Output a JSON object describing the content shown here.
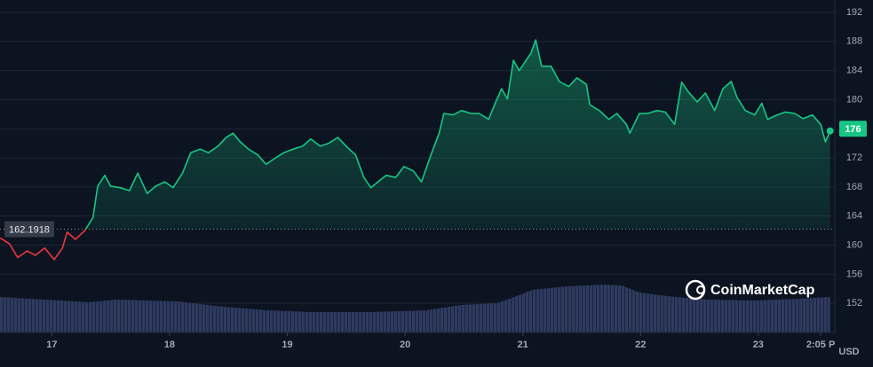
{
  "chart_data": {
    "type": "line",
    "x": [
      16.56,
      16.64,
      16.71,
      16.79,
      16.86,
      16.94,
      17.02,
      17.09,
      17.13,
      17.2,
      17.28,
      17.35,
      17.39,
      17.45,
      17.5,
      17.58,
      17.66,
      17.73,
      17.81,
      17.88,
      17.96,
      18.03,
      18.11,
      18.18,
      18.26,
      18.33,
      18.41,
      18.48,
      18.54,
      18.6,
      18.67,
      18.75,
      18.82,
      18.9,
      18.97,
      19.05,
      19.13,
      19.2,
      19.28,
      19.35,
      19.43,
      19.5,
      19.58,
      19.65,
      19.71,
      19.77,
      19.84,
      19.92,
      19.99,
      20.07,
      20.14,
      20.22,
      20.29,
      20.33,
      20.41,
      20.48,
      20.56,
      20.63,
      20.71,
      20.77,
      20.82,
      20.87,
      20.92,
      20.97,
      21.02,
      21.07,
      21.11,
      21.16,
      21.24,
      21.31,
      21.39,
      21.46,
      21.54,
      21.57,
      21.65,
      21.73,
      21.8,
      21.88,
      21.91,
      21.99,
      22.06,
      22.14,
      22.21,
      22.29,
      22.35,
      22.4,
      22.48,
      22.55,
      22.63,
      22.7,
      22.77,
      22.82,
      22.89,
      22.97,
      23.03,
      23.08,
      23.16,
      23.23,
      23.31,
      23.38,
      23.46,
      23.53,
      23.57,
      23.61
    ],
    "series": [
      {
        "name": "Price",
        "color": "#16c784",
        "below_color": "#ea3943",
        "values": [
          161.0,
          160.2,
          158.3,
          159.2,
          158.6,
          159.6,
          158.0,
          159.6,
          161.8,
          160.8,
          162.0,
          163.8,
          168.1,
          169.6,
          168.1,
          167.9,
          167.5,
          169.9,
          167.1,
          168.1,
          168.7,
          167.9,
          169.9,
          172.7,
          173.2,
          172.7,
          173.6,
          174.8,
          175.4,
          174.2,
          173.2,
          172.4,
          171.1,
          172.0,
          172.7,
          173.2,
          173.6,
          174.6,
          173.6,
          174.0,
          174.8,
          173.6,
          172.4,
          169.3,
          167.9,
          168.7,
          169.6,
          169.3,
          170.8,
          170.2,
          168.7,
          172.4,
          175.4,
          178.1,
          177.9,
          178.5,
          178.1,
          178.1,
          177.3,
          179.7,
          181.5,
          180.1,
          185.4,
          184.0,
          185.2,
          186.4,
          188.2,
          184.6,
          184.6,
          182.5,
          181.8,
          183.0,
          182.1,
          179.3,
          178.5,
          177.3,
          178.1,
          176.6,
          175.4,
          178.1,
          178.1,
          178.5,
          178.3,
          176.6,
          182.4,
          181.2,
          179.7,
          180.9,
          178.5,
          181.5,
          182.5,
          180.3,
          178.5,
          177.9,
          179.5,
          177.3,
          177.9,
          178.3,
          178.1,
          177.4,
          177.9,
          176.6,
          174.2,
          175.7
        ]
      }
    ],
    "baseline": 162.1918,
    "price_tag": 176,
    "volume": {
      "x": [
        16.56,
        16.94,
        17.32,
        17.54,
        18.07,
        18.45,
        18.82,
        19.2,
        19.73,
        20.18,
        20.48,
        20.78,
        20.93,
        21.08,
        21.38,
        21.69,
        21.84,
        21.99,
        22.29,
        22.59,
        22.97,
        23.35,
        23.61
      ],
      "values": [
        40,
        37,
        34,
        37,
        35,
        29,
        25,
        23,
        23,
        25,
        31,
        33,
        40,
        48,
        52,
        54,
        53,
        45,
        40,
        37,
        36,
        38,
        40
      ],
      "ylim": [
        0,
        60
      ],
      "color": "#2b3556"
    },
    "xlim": [
      16.56,
      23.65
    ],
    "ylim": [
      148,
      193.7
    ],
    "xticks": [
      17,
      18,
      19,
      20,
      21,
      22,
      23,
      {
        "value": 23.53,
        "label": "2:05 P"
      }
    ],
    "yticks": [
      152,
      156,
      160,
      164,
      168,
      172,
      176,
      180,
      184,
      188,
      192
    ],
    "y_unit": "USD",
    "watermark": "CoinMarketCap",
    "grid": true
  }
}
